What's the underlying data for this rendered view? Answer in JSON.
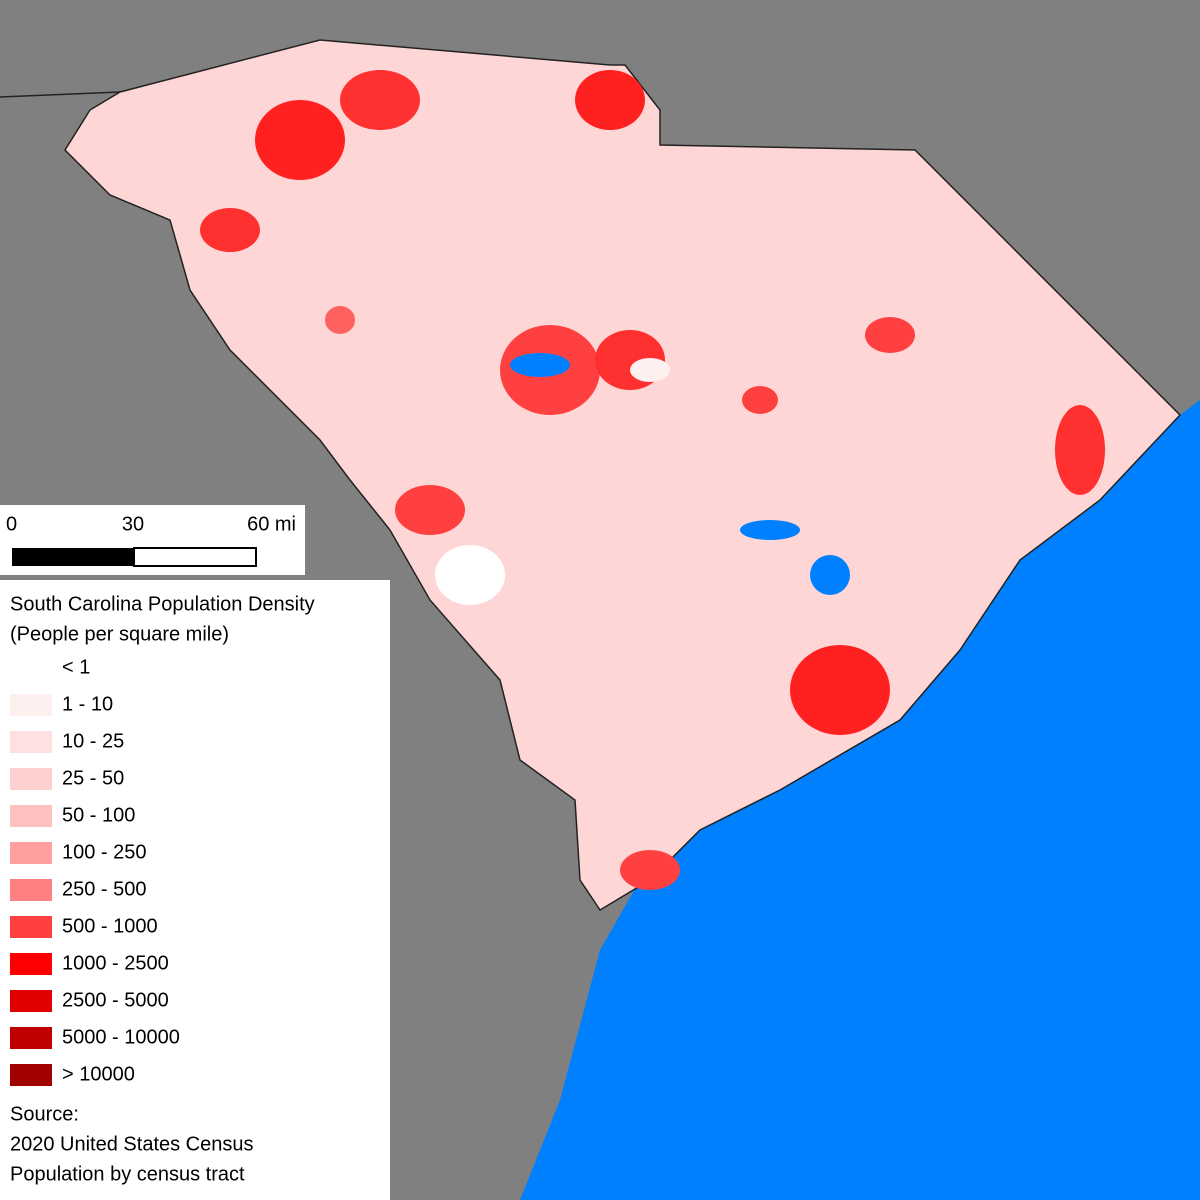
{
  "scale_bar": {
    "labels": [
      "0",
      "30",
      "60 mi"
    ]
  },
  "legend": {
    "title": [
      "South Carolina Population Density",
      "(People per square mile)"
    ],
    "items": [
      {
        "label": "< 1",
        "color": "#ffffff"
      },
      {
        "label": "1 - 10",
        "color": "#fff0f0"
      },
      {
        "label": "10 - 25",
        "color": "#ffe0e0"
      },
      {
        "label": "25 - 50",
        "color": "#ffd0d0"
      },
      {
        "label": "50 - 100",
        "color": "#ffc0c0"
      },
      {
        "label": "100 - 250",
        "color": "#ffa0a0"
      },
      {
        "label": "250 - 500",
        "color": "#ff8080"
      },
      {
        "label": "500 - 1000",
        "color": "#ff4040"
      },
      {
        "label": "1000 - 2500",
        "color": "#ff0000"
      },
      {
        "label": "2500 - 5000",
        "color": "#e00000"
      },
      {
        "label": "5000 - 10000",
        "color": "#c00000"
      },
      {
        "label": "> 10000",
        "color": "#a00000"
      }
    ]
  },
  "source": [
    "Source:",
    "2020 United States Census",
    "Population by census tract"
  ]
}
